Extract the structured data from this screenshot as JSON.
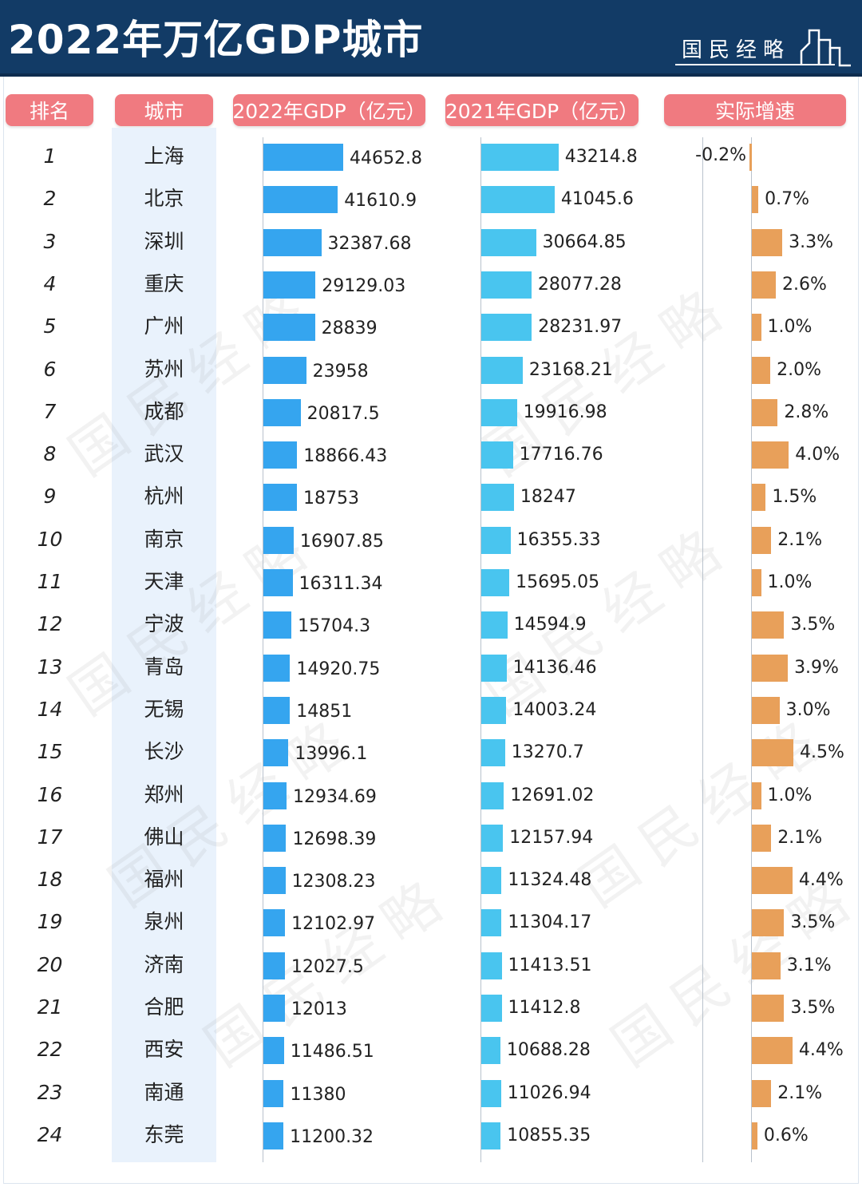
{
  "header": {
    "title": "2022年万亿GDP城市",
    "brand": "国民经略"
  },
  "columns": {
    "rank": "排名",
    "city": "城市",
    "gdp2022": "2022年GDP（亿元）",
    "gdp2021": "2021年GDP（亿元）",
    "growth": "实际增速"
  },
  "colors": {
    "header_bg": "#123b66",
    "pill": "#f07a80",
    "bar_2022": "#35a5ef",
    "bar_2021": "#49c5ef",
    "bar_growth": "#e8a05a",
    "city_band": "#e9f2fc"
  },
  "chart_data": {
    "type": "bar",
    "orientation": "horizontal",
    "title": "2022年万亿GDP城市",
    "categories": [
      "上海",
      "北京",
      "深圳",
      "重庆",
      "广州",
      "苏州",
      "成都",
      "武汉",
      "杭州",
      "南京",
      "天津",
      "宁波",
      "青岛",
      "无锡",
      "长沙",
      "郑州",
      "佛山",
      "福州",
      "泉州",
      "济南",
      "合肥",
      "西安",
      "南通",
      "东莞"
    ],
    "ranks": [
      "1",
      "2",
      "3",
      "4",
      "5",
      "6",
      "7",
      "8",
      "9",
      "10",
      "11",
      "12",
      "13",
      "14",
      "15",
      "16",
      "17",
      "18",
      "19",
      "20",
      "21",
      "22",
      "23",
      "24"
    ],
    "series": [
      {
        "name": "2022年GDP（亿元）",
        "values": [
          44652.8,
          41610.9,
          32387.68,
          29129.03,
          28839,
          23958,
          20817.5,
          18866.43,
          18753,
          16907.85,
          16311.34,
          15704.3,
          14920.75,
          14851,
          13996.1,
          12934.69,
          12698.39,
          12308.23,
          12102.97,
          12027.5,
          12013,
          11486.51,
          11380,
          11200.32
        ],
        "labels": [
          "44652.8",
          "41610.9",
          "32387.68",
          "29129.03",
          "28839",
          "23958",
          "20817.5",
          "18866.43",
          "18753",
          "16907.85",
          "16311.34",
          "15704.3",
          "14920.75",
          "14851",
          "13996.1",
          "12934.69",
          "12698.39",
          "12308.23",
          "12102.97",
          "12027.5",
          "12013",
          "11486.51",
          "11380",
          "11200.32"
        ]
      },
      {
        "name": "2021年GDP（亿元）",
        "values": [
          43214.8,
          41045.6,
          30664.85,
          28077.28,
          28231.97,
          23168.21,
          19916.98,
          17716.76,
          18247,
          16355.33,
          15695.05,
          14594.9,
          14136.46,
          14003.24,
          13270.7,
          12691.02,
          12157.94,
          11324.48,
          11304.17,
          11413.51,
          11412.8,
          10688.28,
          11026.94,
          10855.35
        ],
        "labels": [
          "43214.8",
          "41045.6",
          "30664.85",
          "28077.28",
          "28231.97",
          "23168.21",
          "19916.98",
          "17716.76",
          "18247",
          "16355.33",
          "15695.05",
          "14594.9",
          "14136.46",
          "14003.24",
          "13270.7",
          "12691.02",
          "12157.94",
          "11324.48",
          "11304.17",
          "11413.51",
          "11412.8",
          "10688.28",
          "11026.94",
          "10855.35"
        ]
      },
      {
        "name": "实际增速",
        "values": [
          -0.2,
          0.7,
          3.3,
          2.6,
          1.0,
          2.0,
          2.8,
          4.0,
          1.5,
          2.1,
          1.0,
          3.5,
          3.9,
          3.0,
          4.5,
          1.0,
          2.1,
          4.4,
          3.5,
          3.1,
          3.5,
          4.4,
          2.1,
          0.6
        ],
        "labels": [
          "-0.2%",
          "0.7%",
          "3.3%",
          "2.6%",
          "1.0%",
          "2.0%",
          "2.8%",
          "4.0%",
          "1.5%",
          "2.1%",
          "1.0%",
          "3.5%",
          "3.9%",
          "3.0%",
          "4.5%",
          "1.0%",
          "2.1%",
          "4.4%",
          "3.5%",
          "3.1%",
          "3.5%",
          "4.4%",
          "2.1%",
          "0.6%"
        ]
      }
    ],
    "grid": false,
    "legend": "none"
  }
}
